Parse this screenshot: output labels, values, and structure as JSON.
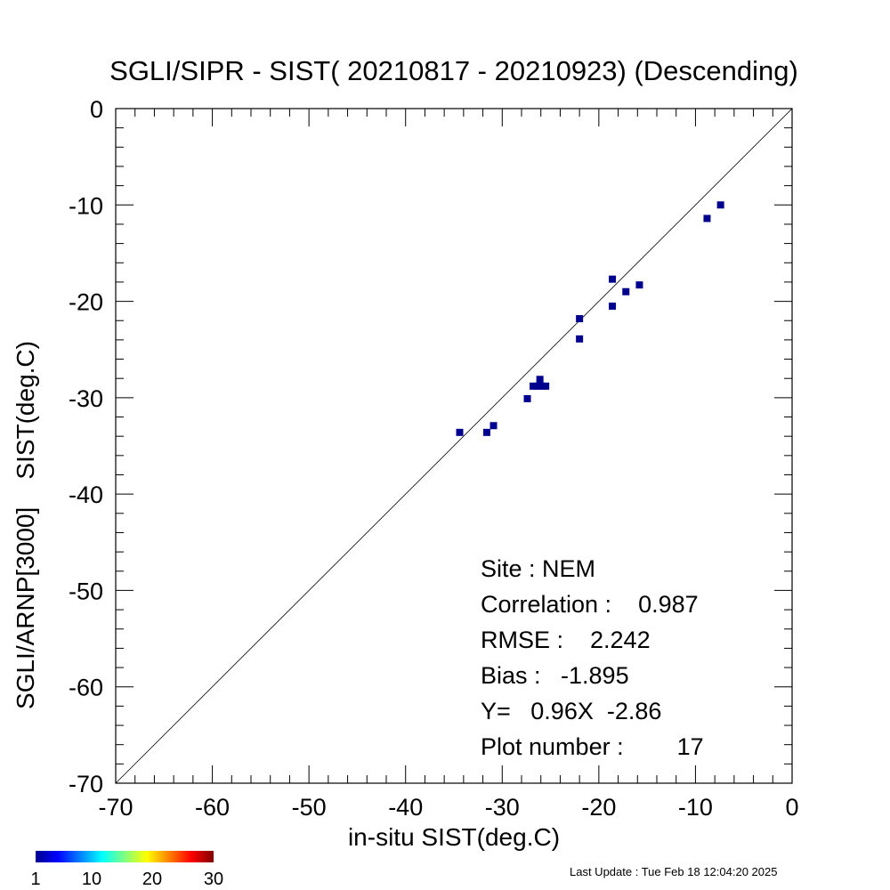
{
  "title": "SGLI/SIPR - SIST( 20210817 - 20210923) (Descending)",
  "chart_data": {
    "type": "scatter",
    "title": "SGLI/SIPR - SIST( 20210817 - 20210923) (Descending)",
    "xlabel": "in-situ SIST(deg.C)",
    "ylabel": "SGLI/ARNP[3000]    SIST(deg.C)",
    "xlim": [
      -70,
      0
    ],
    "ylim": [
      -70,
      0
    ],
    "xticks": [
      -70,
      -60,
      -50,
      -40,
      -30,
      -20,
      -10,
      0
    ],
    "yticks": [
      -70,
      -60,
      -50,
      -40,
      -30,
      -20,
      -10,
      0
    ],
    "reference_line": "1:1 diagonal",
    "marker_color": "#00008f",
    "points": [
      {
        "x": -34.4,
        "y": -33.6
      },
      {
        "x": -31.6,
        "y": -33.6
      },
      {
        "x": -30.9,
        "y": -32.9
      },
      {
        "x": -27.4,
        "y": -30.1
      },
      {
        "x": -26.8,
        "y": -28.8
      },
      {
        "x": -26.4,
        "y": -28.8
      },
      {
        "x": -26.1,
        "y": -28.1
      },
      {
        "x": -25.9,
        "y": -28.8
      },
      {
        "x": -25.5,
        "y": -28.8
      },
      {
        "x": -22.0,
        "y": -21.8
      },
      {
        "x": -22.0,
        "y": -23.9
      },
      {
        "x": -18.6,
        "y": -17.7
      },
      {
        "x": -18.6,
        "y": -20.5
      },
      {
        "x": -17.2,
        "y": -19.0
      },
      {
        "x": -15.8,
        "y": -18.3
      },
      {
        "x": -8.8,
        "y": -11.4
      },
      {
        "x": -7.4,
        "y": -10.0
      }
    ],
    "stats": [
      "Site : NEM",
      "Correlation :    0.987",
      "RMSE :    2.242",
      "Bias :   -1.895",
      "Y=   0.96X  -2.86",
      "Plot number :        17"
    ],
    "colorbar": {
      "range": [
        1,
        30
      ],
      "ticks": [
        "1",
        "10",
        "20",
        "30"
      ],
      "colors": [
        "#00008f",
        "#0000ff",
        "#0080ff",
        "#00ffff",
        "#80ff80",
        "#ffff00",
        "#ff8000",
        "#ff0000",
        "#800000"
      ]
    }
  },
  "footer": "Last Update : Tue Feb 18 12:04:20 2025"
}
